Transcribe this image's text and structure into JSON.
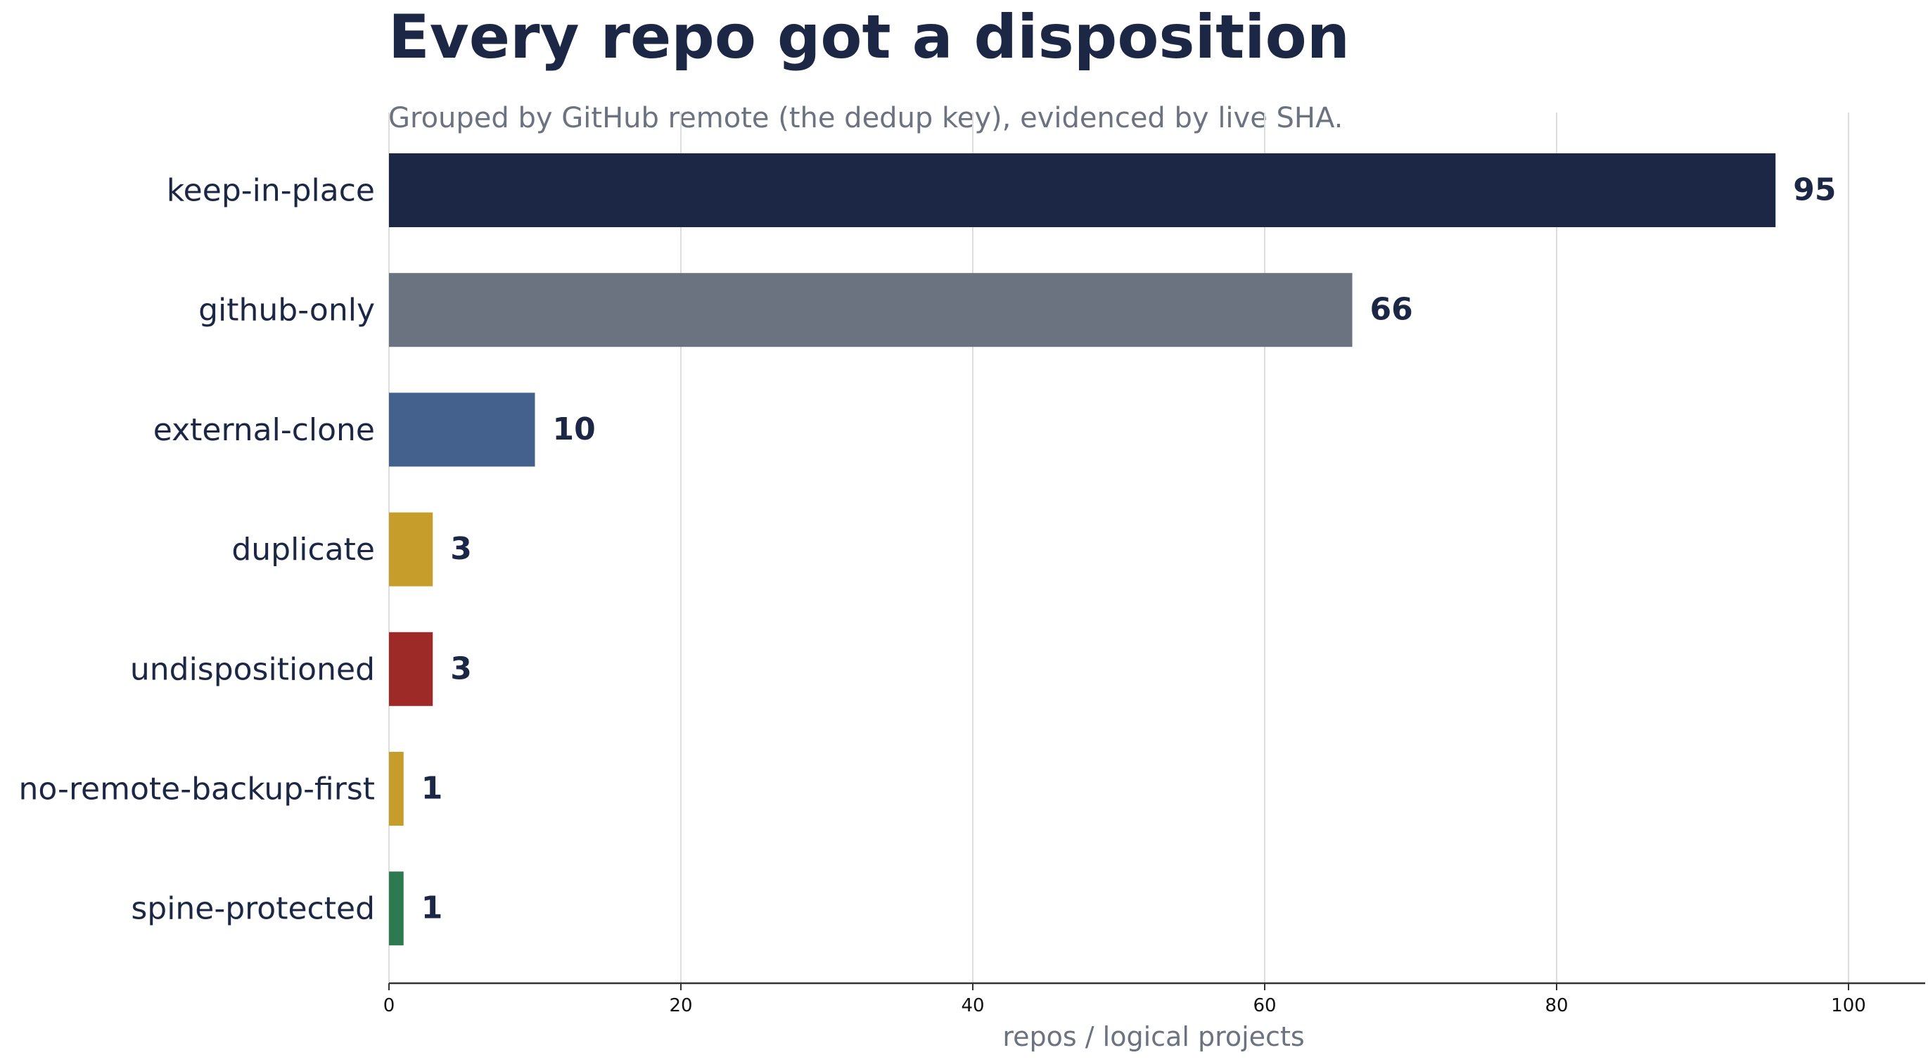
{
  "chart_data": {
    "type": "bar",
    "orientation": "horizontal",
    "title": "Every repo got a disposition",
    "subtitle": "Grouped by GitHub remote (the dedup key), evidenced by live SHA.",
    "xlabel": "repos / logical projects",
    "ylabel": "",
    "xlim": [
      0,
      105
    ],
    "xticks": [
      0,
      20,
      40,
      60,
      80,
      100
    ],
    "grid": "vertical",
    "legend": "none",
    "categories": [
      "keep-in-place",
      "github-only",
      "external-clone",
      "duplicate",
      "undispositioned",
      "no-remote-backup-first",
      "spine-protected"
    ],
    "values": [
      95,
      66,
      10,
      3,
      3,
      1,
      1
    ],
    "value_labels": [
      "95",
      "66",
      "10",
      "3",
      "3",
      "1",
      "1"
    ],
    "colors": [
      "#1b2744",
      "#6b7280",
      "#43618c",
      "#c69c2b",
      "#9e2a27",
      "#c69c2b",
      "#2e7a50"
    ]
  },
  "style": {
    "text_color": "#1b2744",
    "muted_color": "#6b7280",
    "grid_color": "#dddddd",
    "axis_color": "#333333"
  }
}
